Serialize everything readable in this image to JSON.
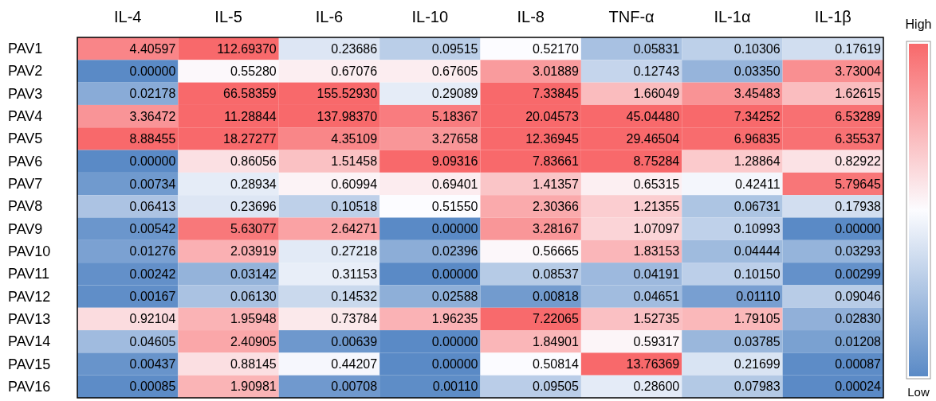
{
  "chart_data": {
    "type": "heatmap",
    "categories": [
      "IL-4",
      "IL-5",
      "IL-6",
      "IL-10",
      "IL-8",
      "TNF-α",
      "IL-1α",
      "IL-1β"
    ],
    "y_categories": [
      "PAV1",
      "PAV2",
      "PAV3",
      "PAV4",
      "PAV5",
      "PAV6",
      "PAV7",
      "PAV8",
      "PAV9",
      "PAV10",
      "PAV11",
      "PAV12",
      "PAV13",
      "PAV14",
      "PAV15",
      "PAV16"
    ],
    "cells": [
      [
        4.40597,
        112.6937,
        0.23686,
        0.09515,
        0.5217,
        0.05831,
        0.10306,
        0.17619
      ],
      [
        0,
        0.5528,
        0.67076,
        0.67605,
        3.01889,
        0.12743,
        0.0335,
        3.73004
      ],
      [
        0.02178,
        66.58359,
        155.5293,
        0.29089,
        7.33845,
        1.66049,
        3.45483,
        1.62615
      ],
      [
        3.36472,
        11.28844,
        137.9837,
        5.18367,
        20.04573,
        45.0448,
        7.34252,
        6.53289
      ],
      [
        8.88455,
        18.27277,
        4.35109,
        3.27658,
        12.36945,
        29.46504,
        6.96835,
        6.35537
      ],
      [
        0,
        0.86056,
        1.51458,
        9.09316,
        7.83661,
        8.75284,
        1.28864,
        0.82922
      ],
      [
        0.00734,
        0.28934,
        0.60994,
        0.69401,
        1.41357,
        0.65315,
        0.42411,
        5.79645
      ],
      [
        0.06413,
        0.23696,
        0.10518,
        0.5155,
        2.30366,
        1.21355,
        0.06731,
        0.17938
      ],
      [
        0.00542,
        5.63077,
        2.64271,
        0,
        3.28167,
        1.07097,
        0.10993,
        0
      ],
      [
        0.01276,
        2.03919,
        0.27218,
        0.02396,
        0.56665,
        1.83153,
        0.04444,
        0.03293
      ],
      [
        0.00242,
        0.03142,
        0.31153,
        0,
        0.08537,
        0.04191,
        0.1015,
        0.00299
      ],
      [
        0.00167,
        0.0613,
        0.14532,
        0.02588,
        0.00818,
        0.04651,
        0.0111,
        0.09046
      ],
      [
        0.92104,
        1.95948,
        0.73784,
        1.96235,
        7.22065,
        1.52735,
        1.79105,
        0.0283
      ],
      [
        0.04605,
        2.40905,
        0.00639,
        0,
        1.84901,
        0.59317,
        0.03785,
        0.01208
      ],
      [
        0.00437,
        0.88145,
        0.44207,
        0,
        0.50814,
        13.76369,
        0.21699,
        0.00087
      ],
      [
        0.00085,
        1.90981,
        0.00708,
        0.0011,
        0.09505,
        0.286,
        0.07983,
        0.00024
      ]
    ],
    "cell_labels": [
      [
        "4.40597",
        "112.69370",
        "0.23686",
        "0.09515",
        "0.52170",
        "0.05831",
        "0.10306",
        "0.17619"
      ],
      [
        "0.00000",
        "0.55280",
        "0.67076",
        "0.67605",
        "3.01889",
        "0.12743",
        "0.03350",
        "3.73004"
      ],
      [
        "0.02178",
        "66.58359",
        "155.52930",
        "0.29089",
        "7.33845",
        "1.66049",
        "3.45483",
        "1.62615"
      ],
      [
        "3.36472",
        "11.28844",
        "137.98370",
        "5.18367",
        "20.04573",
        "45.04480",
        "7.34252",
        "6.53289"
      ],
      [
        "8.88455",
        "18.27277",
        "4.35109",
        "3.27658",
        "12.36945",
        "29.46504",
        "6.96835",
        "6.35537"
      ],
      [
        "0.00000",
        "0.86056",
        "1.51458",
        "9.09316",
        "7.83661",
        "8.75284",
        "1.28864",
        "0.82922"
      ],
      [
        "0.00734",
        "0.28934",
        "0.60994",
        "0.69401",
        "1.41357",
        "0.65315",
        "0.42411",
        "5.79645"
      ],
      [
        "0.06413",
        "0.23696",
        "0.10518",
        "0.51550",
        "2.30366",
        "1.21355",
        "0.06731",
        "0.17938"
      ],
      [
        "0.00542",
        "5.63077",
        "2.64271",
        "0.00000",
        "3.28167",
        "1.07097",
        "0.10993",
        "0.00000"
      ],
      [
        "0.01276",
        "2.03919",
        "0.27218",
        "0.02396",
        "0.56665",
        "1.83153",
        "0.04444",
        "0.03293"
      ],
      [
        "0.00242",
        "0.03142",
        "0.31153",
        "0.00000",
        "0.08537",
        "0.04191",
        "0.10150",
        "0.00299"
      ],
      [
        "0.00167",
        "0.06130",
        "0.14532",
        "0.02588",
        "0.00818",
        "0.04651",
        "0.01110",
        "0.09046"
      ],
      [
        "0.92104",
        "1.95948",
        "0.73784",
        "1.96235",
        "7.22065",
        "1.52735",
        "1.79105",
        "0.02830"
      ],
      [
        "0.04605",
        "2.40905",
        "0.00639",
        "0.00000",
        "1.84901",
        "0.59317",
        "0.03785",
        "0.01208"
      ],
      [
        "0.00437",
        "0.88145",
        "0.44207",
        "0.00000",
        "0.50814",
        "13.76369",
        "0.21699",
        "0.00087"
      ],
      [
        "0.00085",
        "1.90981",
        "0.00708",
        "0.00110",
        "0.09505",
        "0.28600",
        "0.07983",
        "0.00024"
      ]
    ],
    "colors": [
      "#5a8ac6",
      "#fcfcff",
      "#f8696b"
    ],
    "annotations": [
      "High",
      "Low"
    ]
  }
}
